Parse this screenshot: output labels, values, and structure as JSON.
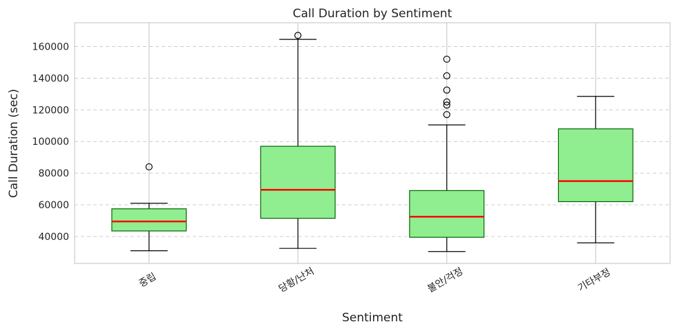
{
  "chart_data": {
    "type": "boxplot",
    "title": "Call Duration by Sentiment",
    "xlabel": "Sentiment",
    "ylabel": "Call Duration (sec)",
    "ylim": [
      23000,
      175000
    ],
    "yticks": [
      40000,
      60000,
      80000,
      100000,
      120000,
      140000,
      160000
    ],
    "grid": "y-dashed, x-solid",
    "colors": {
      "box_fill": "#90ee90",
      "box_edge": "#006400",
      "median": "#ff0000",
      "whisker": "#000000",
      "grid": "#cccccc"
    },
    "categories": [
      "중립",
      "당황/난처",
      "불안/걱정",
      "기타부정"
    ],
    "boxes": [
      {
        "whislo": 31000,
        "q1": 43500,
        "med": 49500,
        "q3": 57500,
        "whishi": 61000,
        "fliers": [
          84000
        ]
      },
      {
        "whislo": 32500,
        "q1": 51500,
        "med": 69500,
        "q3": 97000,
        "whishi": 164500,
        "fliers": [
          167000
        ]
      },
      {
        "whislo": 30500,
        "q1": 39500,
        "med": 52500,
        "q3": 69000,
        "whishi": 110500,
        "fliers": [
          117000,
          123000,
          125000,
          132500,
          141500,
          152000
        ]
      },
      {
        "whislo": 36000,
        "q1": 62000,
        "med": 75000,
        "q3": 108000,
        "whishi": 128500,
        "fliers": []
      }
    ]
  }
}
